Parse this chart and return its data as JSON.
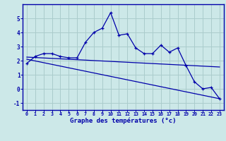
{
  "xlabel": "Graphe des températures (°c)",
  "bg_color": "#cce8e8",
  "line_color": "#0000aa",
  "grid_color": "#aacccc",
  "xlim": [
    -0.5,
    23.5
  ],
  "ylim": [
    -1.5,
    6.0
  ],
  "yticks": [
    -1,
    0,
    1,
    2,
    3,
    4,
    5
  ],
  "xticks": [
    0,
    1,
    2,
    3,
    4,
    5,
    6,
    7,
    8,
    9,
    10,
    11,
    12,
    13,
    14,
    15,
    16,
    17,
    18,
    19,
    20,
    21,
    22,
    23
  ],
  "main_series": [
    [
      0,
      1.8
    ],
    [
      1,
      2.3
    ],
    [
      2,
      2.5
    ],
    [
      3,
      2.5
    ],
    [
      4,
      2.3
    ],
    [
      5,
      2.2
    ],
    [
      6,
      2.2
    ],
    [
      7,
      3.3
    ],
    [
      8,
      4.0
    ],
    [
      9,
      4.3
    ],
    [
      10,
      5.4
    ],
    [
      11,
      3.8
    ],
    [
      12,
      3.9
    ],
    [
      13,
      2.9
    ],
    [
      14,
      2.5
    ],
    [
      15,
      2.5
    ],
    [
      16,
      3.1
    ],
    [
      17,
      2.6
    ],
    [
      18,
      2.9
    ],
    [
      19,
      1.65
    ],
    [
      20,
      0.5
    ],
    [
      21,
      0.0
    ],
    [
      22,
      0.1
    ],
    [
      23,
      -0.7
    ]
  ],
  "regression_line1": [
    [
      0,
      2.25
    ],
    [
      23,
      1.55
    ]
  ],
  "regression_line2": [
    [
      0,
      2.1
    ],
    [
      23,
      -0.7
    ]
  ]
}
